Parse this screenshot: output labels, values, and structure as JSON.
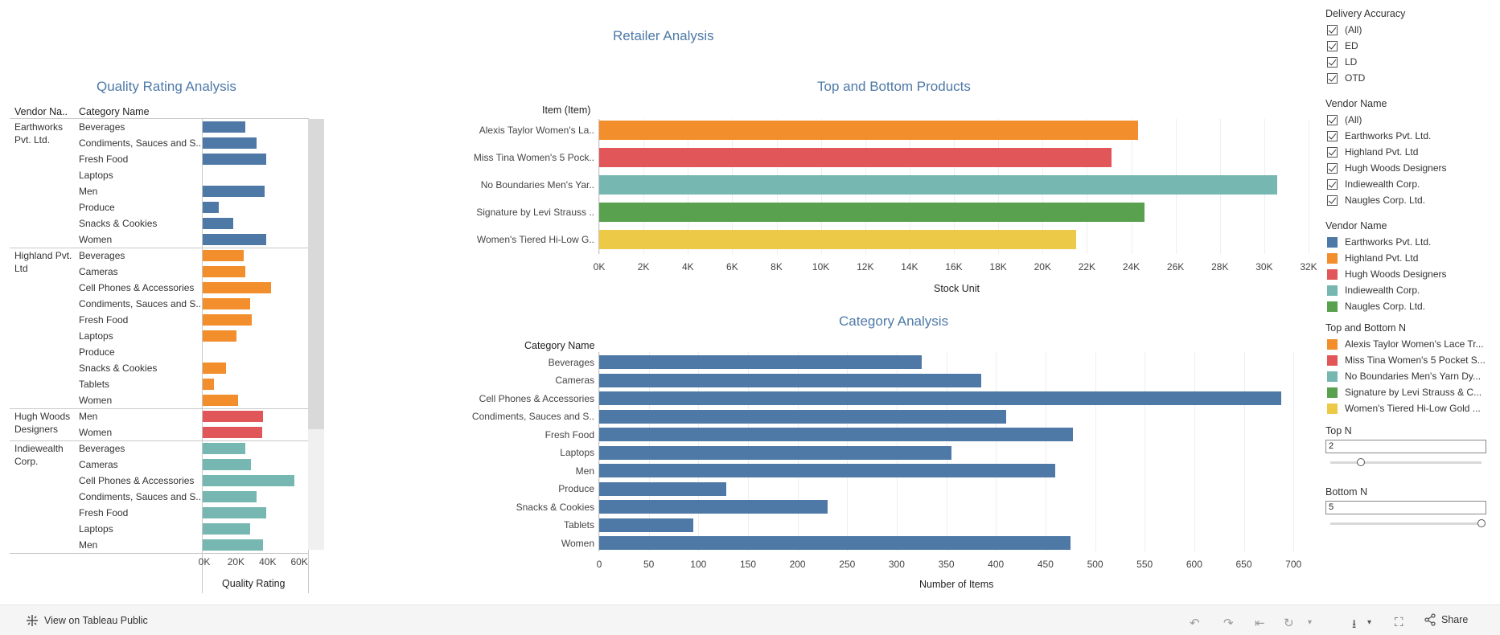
{
  "dashboard_title": "Retailer Analysis",
  "quality": {
    "title": "Quality Rating Analysis",
    "vendor_header": "Vendor Na..",
    "category_header": "Category Name",
    "axis_title": "Quality Rating",
    "ticks": [
      "0K",
      "20K",
      "40K",
      "60K"
    ],
    "groups": [
      {
        "vendor": "Earthworks Pvt. Ltd.",
        "color": "#4e79a7",
        "rows": [
          {
            "category": "Beverages",
            "value": 27000
          },
          {
            "category": "Condiments, Sauces and S..",
            "value": 34000
          },
          {
            "category": "Fresh Food",
            "value": 40000
          },
          {
            "category": "Laptops",
            "value": 0
          },
          {
            "category": "Men",
            "value": 39000
          },
          {
            "category": "Produce",
            "value": 10000
          },
          {
            "category": "Snacks & Cookies",
            "value": 19500
          },
          {
            "category": "Women",
            "value": 40000
          }
        ]
      },
      {
        "vendor": "Highland Pvt. Ltd",
        "color": "#f28e2b",
        "rows": [
          {
            "category": "Beverages",
            "value": 26000
          },
          {
            "category": "Cameras",
            "value": 27000
          },
          {
            "category": "Cell Phones & Accessories",
            "value": 43000
          },
          {
            "category": "Condiments, Sauces and S..",
            "value": 30000
          },
          {
            "category": "Fresh Food",
            "value": 31000
          },
          {
            "category": "Laptops",
            "value": 21500
          },
          {
            "category": "Produce",
            "value": 0
          },
          {
            "category": "Snacks & Cookies",
            "value": 14500
          },
          {
            "category": "Tablets",
            "value": 7000
          },
          {
            "category": "Women",
            "value": 22500
          }
        ]
      },
      {
        "vendor": "Hugh Woods Designers",
        "color": "#e15759",
        "rows": [
          {
            "category": "Men",
            "value": 38000
          },
          {
            "category": "Women",
            "value": 37500
          }
        ]
      },
      {
        "vendor": "Indiewealth Corp.",
        "color": "#76b7b2",
        "rows": [
          {
            "category": "Beverages",
            "value": 27000
          },
          {
            "category": "Cameras",
            "value": 30500
          },
          {
            "category": "Cell Phones & Accessories",
            "value": 58000
          },
          {
            "category": "Condiments, Sauces and S..",
            "value": 34000
          },
          {
            "category": "Fresh Food",
            "value": 40000
          },
          {
            "category": "Laptops",
            "value": 30000
          },
          {
            "category": "Men",
            "value": 38000
          }
        ]
      }
    ]
  },
  "chart_data": [
    {
      "type": "bar",
      "orientation": "horizontal",
      "title": "Top and Bottom Products",
      "ylabel": "Item (Item)",
      "xlabel": "Stock Unit",
      "categories": [
        "Alexis Taylor Women's La..",
        "Miss Tina Women's 5 Pock..",
        "No Boundaries Men's Yar..",
        "Signature by Levi Strauss ..",
        "Women's Tiered Hi-Low G.."
      ],
      "values": [
        24300,
        23100,
        30600,
        24600,
        21500
      ],
      "colors": [
        "#f28e2b",
        "#e15759",
        "#76b7b2",
        "#59a14f",
        "#edc948"
      ],
      "ticks": [
        "0K",
        "2K",
        "4K",
        "6K",
        "8K",
        "10K",
        "12K",
        "14K",
        "16K",
        "18K",
        "20K",
        "22K",
        "24K",
        "26K",
        "28K",
        "30K",
        "32K"
      ],
      "xlim": [
        0,
        32000
      ],
      "grid": true
    },
    {
      "type": "bar",
      "orientation": "horizontal",
      "title": "Category Analysis",
      "ylabel": "Category Name",
      "xlabel": "Number of Items",
      "categories": [
        "Beverages",
        "Cameras",
        "Cell Phones & Accessories",
        "Condiments, Sauces and S..",
        "Fresh Food",
        "Laptops",
        "Men",
        "Produce",
        "Snacks & Cookies",
        "Tablets",
        "Women"
      ],
      "values": [
        325,
        385,
        688,
        410,
        478,
        355,
        460,
        128,
        230,
        95,
        475
      ],
      "color": "#4e79a7",
      "ticks": [
        "0",
        "50",
        "100",
        "150",
        "200",
        "250",
        "300",
        "350",
        "400",
        "450",
        "500",
        "550",
        "600",
        "650",
        "700"
      ],
      "xlim": [
        0,
        725
      ],
      "grid": true
    }
  ],
  "filters": {
    "delivery": {
      "title": "Delivery Accuracy",
      "items": [
        "(All)",
        "ED",
        "LD",
        "OTD"
      ]
    },
    "vendor": {
      "title": "Vendor Name",
      "items": [
        "(All)",
        "Earthworks Pvt. Ltd.",
        "Highland Pvt. Ltd",
        "Hugh Woods Designers",
        "Indiewealth Corp.",
        "Naugles Corp. Ltd."
      ]
    }
  },
  "legends": {
    "vendor": {
      "title": "Vendor Name",
      "items": [
        {
          "label": "Earthworks Pvt. Ltd.",
          "color": "#4e79a7"
        },
        {
          "label": "Highland Pvt. Ltd",
          "color": "#f28e2b"
        },
        {
          "label": "Hugh Woods Designers",
          "color": "#e15759"
        },
        {
          "label": "Indiewealth Corp.",
          "color": "#76b7b2"
        },
        {
          "label": "Naugles Corp. Ltd.",
          "color": "#59a14f"
        }
      ]
    },
    "topbottom": {
      "title": "Top and Bottom N",
      "items": [
        {
          "label": "Alexis Taylor Women's Lace Tr...",
          "color": "#f28e2b"
        },
        {
          "label": "Miss Tina Women's 5 Pocket S...",
          "color": "#e15759"
        },
        {
          "label": "No Boundaries Men's Yarn Dy...",
          "color": "#76b7b2"
        },
        {
          "label": "Signature by Levi Strauss & C...",
          "color": "#59a14f"
        },
        {
          "label": "Women's Tiered Hi-Low Gold ...",
          "color": "#edc948"
        }
      ]
    }
  },
  "params": {
    "top_n": {
      "title": "Top N",
      "value": "2",
      "level": 0.2
    },
    "bottom_n": {
      "title": "Bottom N",
      "value": "5",
      "level": 1.0
    }
  },
  "footer": {
    "view_label": "View on Tableau Public",
    "share_label": "Share"
  }
}
